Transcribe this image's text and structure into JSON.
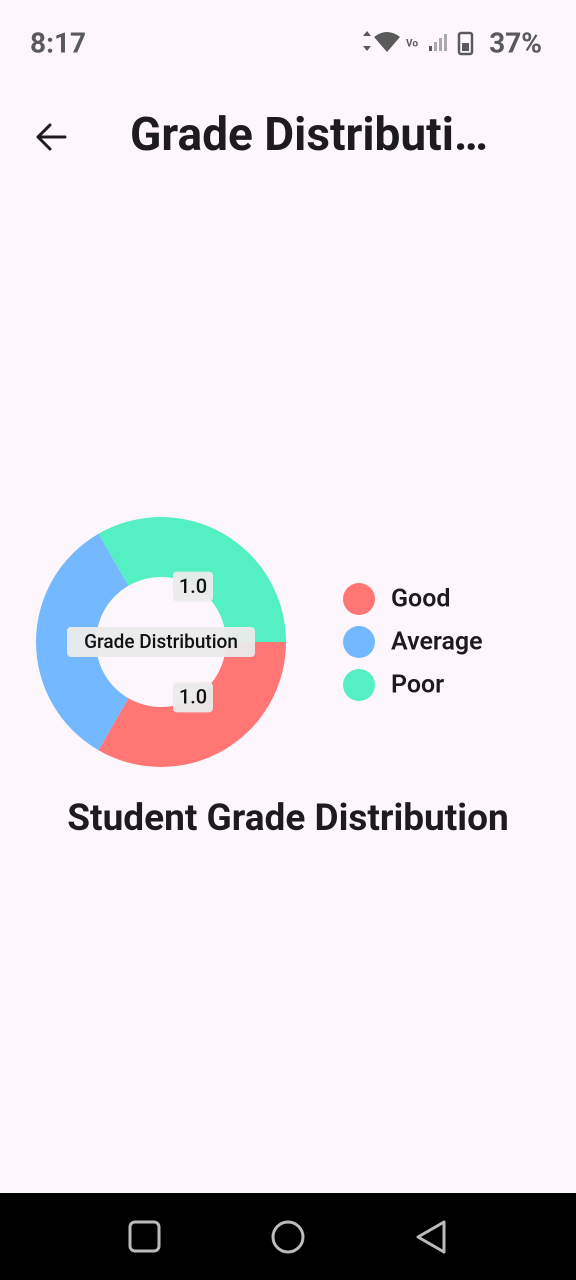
{
  "status_bar": {
    "time": "8:17",
    "battery": "37%"
  },
  "app_bar": {
    "title": "Grade Distributi…"
  },
  "chart_data": {
    "type": "pie",
    "donut": true,
    "center_label": "Grade Distribution",
    "categories": [
      "Good",
      "Average",
      "Poor"
    ],
    "values": [
      1,
      1,
      1
    ],
    "value_labels": [
      "1.0",
      null,
      "1.0"
    ],
    "colors": [
      "#ff7675",
      "#74b9ff",
      "#55efc4"
    ],
    "legend": "right"
  },
  "caption": "Student Grade Distribution"
}
